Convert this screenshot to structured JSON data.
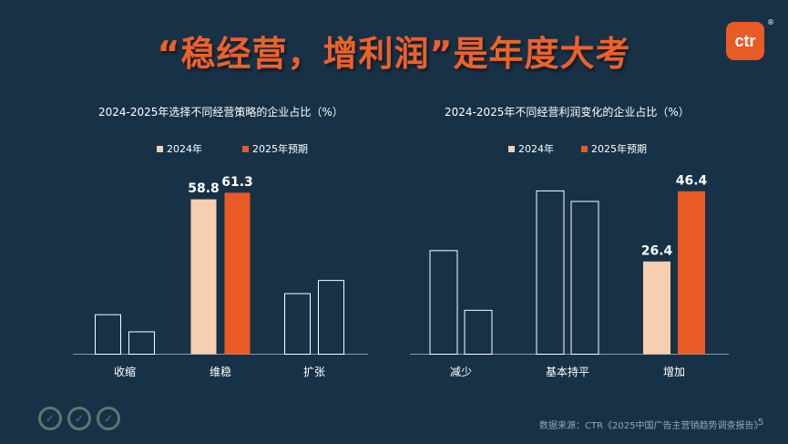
{
  "slide": {
    "title": "“稳经营，增利润”是年度大考",
    "logo_text": "ctr",
    "logo_mark": "®",
    "source": "数据来源：CTR《2025中国广告主营销趋势调查报告》",
    "page_number": "5",
    "badge_icons": [
      "check-badge-icon",
      "check-badge-icon",
      "check-badge-icon"
    ],
    "colors": {
      "background": "#173247",
      "title": "#f0602a",
      "series_2024": "#f6cfb1",
      "series_2025": "#ea5a24",
      "outline": "#ffffff"
    }
  },
  "chart_data": [
    {
      "type": "bar",
      "title": "2024-2025年选择不同经营策略的企业占比（%）",
      "categories": [
        "收缩",
        "维稳",
        "扩张"
      ],
      "series": [
        {
          "name": "2024年",
          "values": [
            null,
            58.8,
            null
          ],
          "approx_values": [
            15,
            58.8,
            23
          ]
        },
        {
          "name": "2025年预期",
          "values": [
            null,
            61.3,
            null
          ],
          "approx_values": [
            8.5,
            61.3,
            28
          ]
        }
      ],
      "highlight_category": "维稳",
      "legend": [
        "2024年",
        "2025年预期"
      ],
      "legend_position": "top-center",
      "ylim": [
        0,
        72
      ],
      "grid": false
    },
    {
      "type": "bar",
      "title": "2024-2025年不同经营利润变化的企业占比（%）",
      "categories": [
        "减少",
        "基本持平",
        "增加"
      ],
      "series": [
        {
          "name": "2024年",
          "values": [
            null,
            null,
            26.4
          ],
          "approx_values": [
            29.5,
            46.5,
            26.4
          ]
        },
        {
          "name": "2025年预期",
          "values": [
            null,
            null,
            46.4
          ],
          "approx_values": [
            12.5,
            43.5,
            46.4
          ]
        }
      ],
      "highlight_category": "增加",
      "legend": [
        "2024年",
        "2025年预期"
      ],
      "legend_position": "top-center",
      "ylim": [
        0,
        54
      ],
      "grid": false
    }
  ]
}
